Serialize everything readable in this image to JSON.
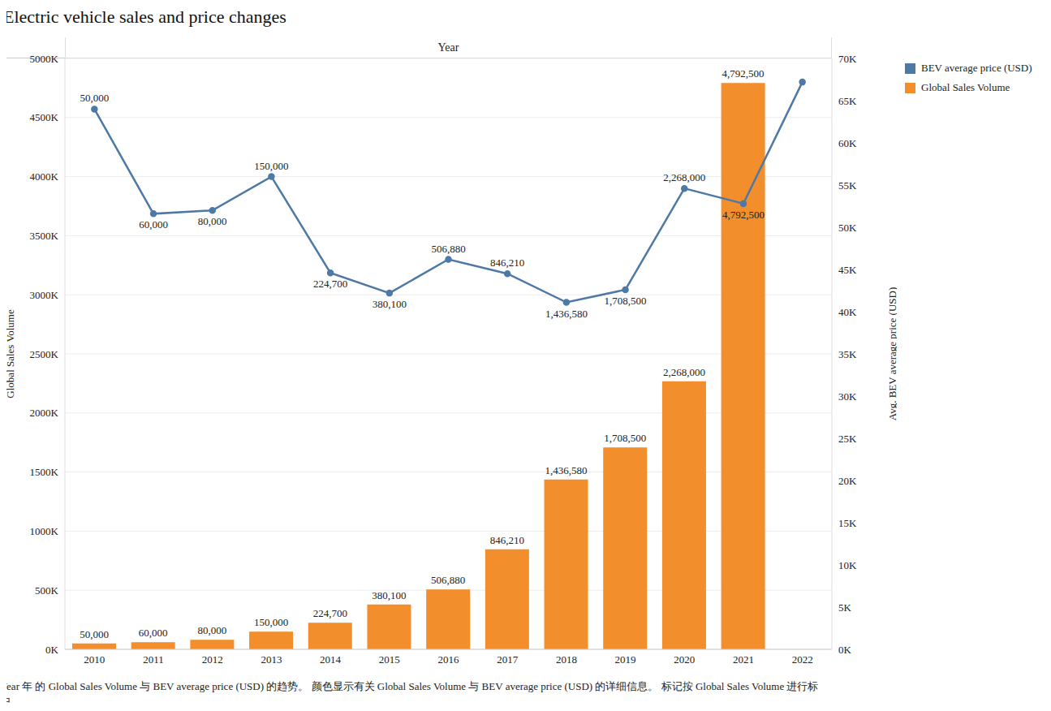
{
  "chart_data": {
    "type": "bar",
    "title": "Electric vehicle sales and price changes",
    "x_label": "Year",
    "y_label": "Global Sales Volume",
    "y2_label": "Avg. BEV average price (USD)",
    "caption": "Year 年 的 Global Sales Volume 与 BEV average price (USD) 的趋势。 颜色显示有关 Global Sales Volume 与 BEV average price (USD) 的详细信息。 标记按 Global Sales Volume 进行标记。",
    "categories": [
      "2010",
      "2011",
      "2012",
      "2013",
      "2014",
      "2015",
      "2016",
      "2017",
      "2018",
      "2019",
      "2020",
      "2021",
      "2022"
    ],
    "series": [
      {
        "name": "BEV average price (USD)",
        "type": "line",
        "axis": "y2",
        "color": "#4e79a7",
        "marker": "circle",
        "values": [
          64000,
          51600,
          52000,
          56000,
          44600,
          42200,
          46200,
          44500,
          41100,
          42600,
          54600,
          52800,
          67200
        ],
        "point_labels": [
          "50,000",
          "60,000",
          "80,000",
          "150,000",
          "224,700",
          "380,100",
          "506,880",
          "846,210",
          "1,436,580",
          "1,708,500",
          "2,268,000",
          "4,792,500",
          null
        ]
      },
      {
        "name": "Global Sales Volume",
        "type": "bar",
        "axis": "y",
        "color": "#f28e2b",
        "values": [
          50000,
          60000,
          80000,
          150000,
          224700,
          380100,
          506880,
          846210,
          1436580,
          1708500,
          2268000,
          4792500,
          null
        ],
        "value_labels": [
          "50,000",
          "60,000",
          "80,000",
          "150,000",
          "224,700",
          "380,100",
          "506,880",
          "846,210",
          "1,436,580",
          "1,708,500",
          "2,268,000",
          "4,792,500",
          null
        ]
      }
    ],
    "ylim": [
      0,
      5000000
    ],
    "yticks": [
      {
        "value": 0,
        "label": "0K"
      },
      {
        "value": 500000,
        "label": "500K"
      },
      {
        "value": 1000000,
        "label": "1000K"
      },
      {
        "value": 1500000,
        "label": "1500K"
      },
      {
        "value": 2000000,
        "label": "2000K"
      },
      {
        "value": 2500000,
        "label": "2500K"
      },
      {
        "value": 3000000,
        "label": "3000K"
      },
      {
        "value": 3500000,
        "label": "3500K"
      },
      {
        "value": 4000000,
        "label": "4000K"
      },
      {
        "value": 4500000,
        "label": "4500K"
      },
      {
        "value": 5000000,
        "label": "5000K"
      }
    ],
    "y2lim": [
      0,
      70000
    ],
    "y2ticks": [
      {
        "value": 0,
        "label": "0K"
      },
      {
        "value": 5000,
        "label": "5K"
      },
      {
        "value": 10000,
        "label": "10K"
      },
      {
        "value": 15000,
        "label": "15K"
      },
      {
        "value": 20000,
        "label": "20K"
      },
      {
        "value": 25000,
        "label": "25K"
      },
      {
        "value": 30000,
        "label": "30K"
      },
      {
        "value": 35000,
        "label": "35K"
      },
      {
        "value": 40000,
        "label": "40K"
      },
      {
        "value": 45000,
        "label": "45K"
      },
      {
        "value": 50000,
        "label": "50K"
      },
      {
        "value": 55000,
        "label": "55K"
      },
      {
        "value": 60000,
        "label": "60K"
      },
      {
        "value": 65000,
        "label": "65K"
      },
      {
        "value": 70000,
        "label": "70K"
      }
    ],
    "grid": true,
    "legend": "top-right",
    "data_labels": true
  }
}
